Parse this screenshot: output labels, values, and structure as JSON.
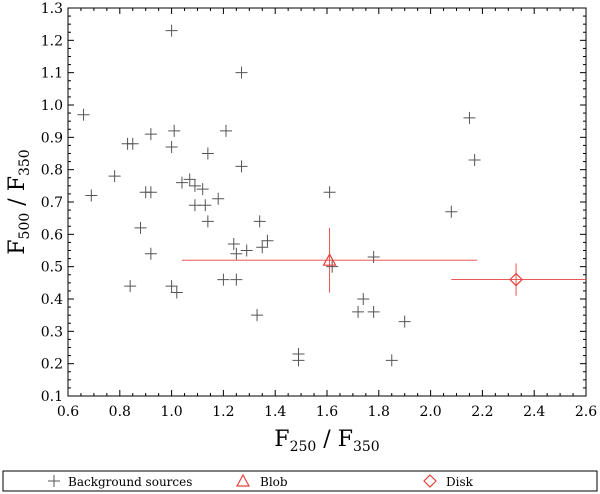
{
  "chart_data": {
    "type": "scatter",
    "title": "",
    "xlabel": {
      "main": "F",
      "sub1": "250",
      "sep": " / F",
      "sub2": "350"
    },
    "ylabel": {
      "main": "F",
      "sub1": "500",
      "sep": " / F",
      "sub2": "350"
    },
    "xlim": [
      0.6,
      2.6
    ],
    "ylim": [
      0.1,
      1.3
    ],
    "xticks": [
      "0.6",
      "0.8",
      "1.0",
      "1.2",
      "1.4",
      "1.6",
      "1.8",
      "2.0",
      "2.2",
      "2.4",
      "2.6"
    ],
    "yticks": [
      "0.1",
      "0.2",
      "0.3",
      "0.4",
      "0.5",
      "0.6",
      "0.7",
      "0.8",
      "0.9",
      "1.0",
      "1.1",
      "1.2",
      "1.3"
    ],
    "grid": false,
    "legend_position": "bottom",
    "series": [
      {
        "name": "Background sources",
        "marker": "plus",
        "color": "#555555",
        "points": [
          [
            0.66,
            0.97
          ],
          [
            0.69,
            0.72
          ],
          [
            0.78,
            0.78
          ],
          [
            0.83,
            0.88
          ],
          [
            0.85,
            0.88
          ],
          [
            0.84,
            0.44
          ],
          [
            0.88,
            0.62
          ],
          [
            0.9,
            0.73
          ],
          [
            0.92,
            0.73
          ],
          [
            0.92,
            0.91
          ],
          [
            0.92,
            0.54
          ],
          [
            1.0,
            1.23
          ],
          [
            1.0,
            0.87
          ],
          [
            1.0,
            0.44
          ],
          [
            1.01,
            0.92
          ],
          [
            1.02,
            0.42
          ],
          [
            1.04,
            0.76
          ],
          [
            1.07,
            0.77
          ],
          [
            1.09,
            0.75
          ],
          [
            1.09,
            0.69
          ],
          [
            1.12,
            0.74
          ],
          [
            1.13,
            0.69
          ],
          [
            1.14,
            0.85
          ],
          [
            1.14,
            0.64
          ],
          [
            1.18,
            0.71
          ],
          [
            1.2,
            0.46
          ],
          [
            1.21,
            0.92
          ],
          [
            1.24,
            0.57
          ],
          [
            1.25,
            0.54
          ],
          [
            1.25,
            0.46
          ],
          [
            1.27,
            1.1
          ],
          [
            1.27,
            0.81
          ],
          [
            1.29,
            0.55
          ],
          [
            1.33,
            0.35
          ],
          [
            1.34,
            0.64
          ],
          [
            1.35,
            0.56
          ],
          [
            1.37,
            0.58
          ],
          [
            1.49,
            0.23
          ],
          [
            1.49,
            0.21
          ],
          [
            1.61,
            0.73
          ],
          [
            1.62,
            0.5
          ],
          [
            1.72,
            0.36
          ],
          [
            1.74,
            0.4
          ],
          [
            1.78,
            0.36
          ],
          [
            1.78,
            0.53
          ],
          [
            1.85,
            0.21
          ],
          [
            1.9,
            0.33
          ],
          [
            2.08,
            0.67
          ],
          [
            2.15,
            0.96
          ],
          [
            2.17,
            0.83
          ]
        ]
      },
      {
        "name": "Blob",
        "marker": "triangle",
        "color": "#e8413c",
        "points": [
          [
            1.61,
            0.52
          ]
        ],
        "xerr": [
          0.57,
          0.57
        ],
        "yerr": [
          0.1,
          0.1
        ]
      },
      {
        "name": "Disk",
        "marker": "diamond",
        "color": "#e8413c",
        "points": [
          [
            2.33,
            0.46
          ]
        ],
        "xerr": [
          0.25,
          0.27
        ],
        "yerr": [
          0.05,
          0.05
        ]
      }
    ]
  }
}
